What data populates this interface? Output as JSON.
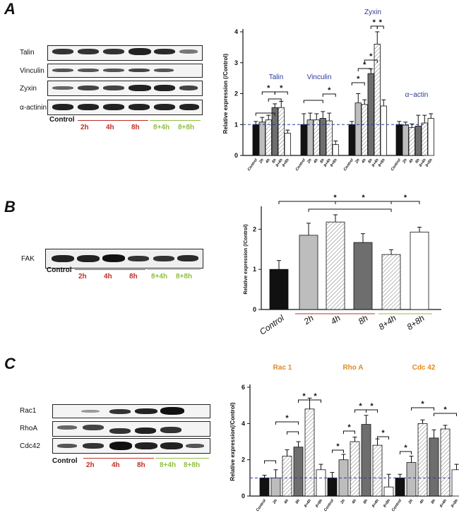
{
  "panel_labels": {
    "a": "A",
    "b": "B",
    "c": "C"
  },
  "colors": {
    "red": "#c0302a",
    "green": "#8fbf3f",
    "dash": "#2a3a9a",
    "orange": "#e08a1e",
    "blue": "#2b3a9a"
  },
  "blot_lanes": {
    "control": "Control",
    "red": [
      "2h",
      "4h",
      "8h"
    ],
    "green": [
      "8+4h",
      "8+8h"
    ]
  },
  "blot_a": {
    "proteins": [
      "Talin",
      "Vinculin",
      "Zyxin",
      "α-actinin"
    ]
  },
  "blot_b": {
    "proteins": [
      "FAK"
    ]
  },
  "blot_c": {
    "proteins": [
      "Rac1",
      "RhoA",
      "Cdc42"
    ]
  },
  "chart_data": [
    {
      "id": "A",
      "type": "bar",
      "ylabel": "Relative expression (/Control)",
      "ylim": [
        0,
        4
      ],
      "yticks": [
        "0",
        "1",
        "2",
        "3",
        "4"
      ],
      "categories": [
        "Control",
        "2h",
        "4h",
        "8h",
        "8+4h",
        "8+8h"
      ],
      "reference_line": 1,
      "groups": [
        {
          "name": "Talin",
          "values": [
            1.0,
            1.08,
            1.15,
            1.55,
            1.55,
            0.72
          ],
          "errors": [
            0.1,
            0.15,
            0.15,
            0.12,
            0.2,
            0.1
          ],
          "stars": [
            "*",
            "*"
          ]
        },
        {
          "name": "Vinculin",
          "values": [
            1.0,
            1.15,
            1.15,
            1.2,
            1.12,
            0.35
          ],
          "errors": [
            0.35,
            0.22,
            0.2,
            0.22,
            0.25,
            0.12
          ],
          "stars": [
            "*"
          ]
        },
        {
          "name": "Zyxin",
          "values": [
            1.0,
            1.7,
            1.65,
            2.65,
            3.6,
            1.6
          ],
          "errors": [
            0.1,
            0.3,
            0.15,
            0.15,
            0.4,
            0.2
          ],
          "stars": [
            "*",
            "*",
            "*",
            "*",
            "*"
          ]
        },
        {
          "name": "α−actin",
          "values": [
            1.0,
            0.98,
            0.9,
            0.95,
            1.05,
            1.2
          ],
          "errors": [
            0.1,
            0.1,
            0.12,
            0.35,
            0.25,
            0.15
          ],
          "stars": []
        }
      ]
    },
    {
      "id": "B",
      "type": "bar",
      "ylabel": "Relative expression (/Control)",
      "ylim": [
        0,
        2.5
      ],
      "yticks": [
        "0",
        "1",
        "2"
      ],
      "categories": [
        "Control",
        "2h",
        "4h",
        "8h",
        "8+4h",
        "8+8h"
      ],
      "values": [
        1.0,
        1.85,
        2.18,
        1.67,
        1.37,
        1.93
      ],
      "errors": [
        0.22,
        0.3,
        0.18,
        0.22,
        0.12,
        0.12
      ],
      "stars": [
        "*",
        "*",
        "*"
      ]
    },
    {
      "id": "C",
      "type": "bar",
      "ylabel": "Relative expression(/Control)",
      "ylim": [
        0,
        6
      ],
      "yticks": [
        "0",
        "2",
        "4",
        "6"
      ],
      "categories": [
        "Control",
        "2h",
        "4h",
        "8h",
        "8+4h",
        "8+8h"
      ],
      "reference_line": 1,
      "groups": [
        {
          "name": "Rac 1",
          "values": [
            1.0,
            1.0,
            2.2,
            2.7,
            4.8,
            1.45
          ],
          "errors": [
            0.15,
            0.45,
            0.35,
            0.3,
            0.6,
            0.3
          ],
          "stars": [
            "*",
            "*",
            "*"
          ]
        },
        {
          "name": "Rho A",
          "values": [
            1.0,
            2.0,
            3.0,
            3.95,
            2.8,
            0.5
          ],
          "errors": [
            0.3,
            0.3,
            0.25,
            0.5,
            0.35,
            0.7
          ],
          "stars": [
            "*",
            "*",
            "*",
            "*",
            "*"
          ]
        },
        {
          "name": "Cdc 42",
          "values": [
            1.0,
            1.85,
            4.0,
            3.2,
            3.7,
            1.45
          ],
          "errors": [
            0.2,
            0.35,
            0.2,
            0.45,
            0.2,
            0.3
          ],
          "stars": [
            "*",
            "*",
            "*"
          ]
        }
      ]
    }
  ]
}
